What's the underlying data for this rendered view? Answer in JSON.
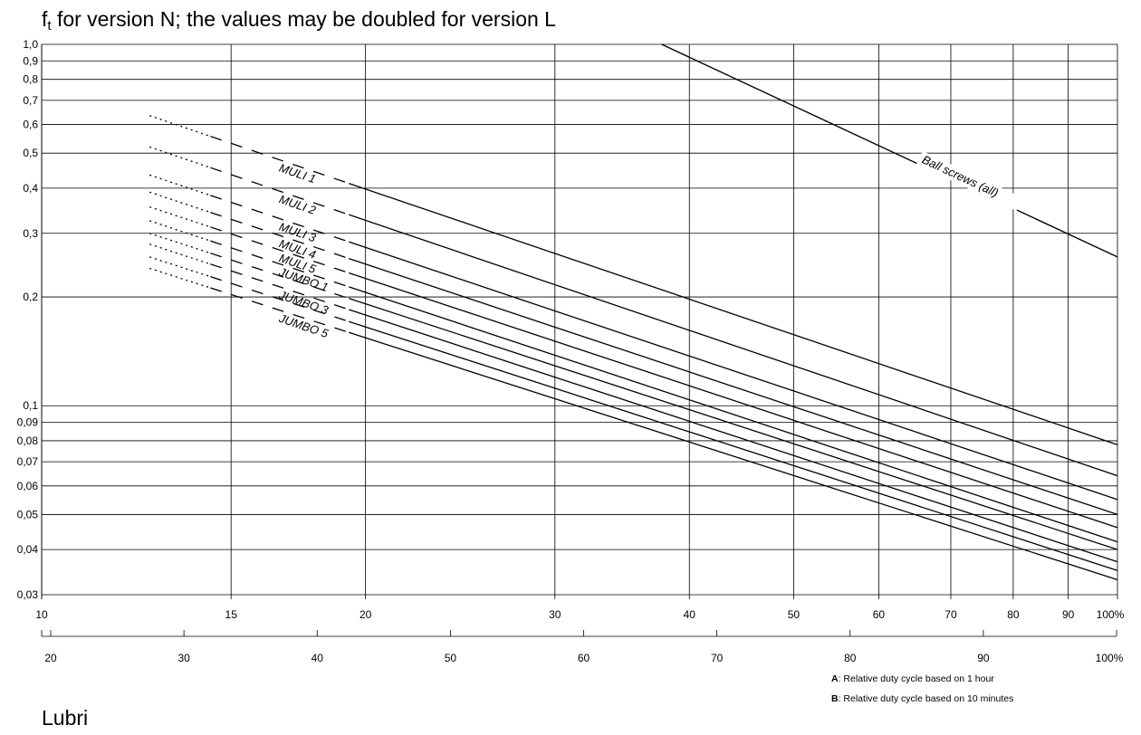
{
  "title": {
    "symbol": "f",
    "subscript": "t",
    "text": " for version N; the values may be doubled for version L"
  },
  "notes": [
    {
      "key": "A",
      "text": ": Relative duty cycle based on 1 hour"
    },
    {
      "key": "B",
      "text": ": Relative duty cycle based on 10 minutes"
    }
  ],
  "partial_text": "Lubri",
  "chart_data": {
    "type": "line",
    "title": "ft for version N; the values may be doubled for version L",
    "y_scale": "log",
    "ylim": [
      0.03,
      1.0
    ],
    "y_ticks": [
      {
        "value": 1.0,
        "label": "1,0"
      },
      {
        "value": 0.9,
        "label": "0,9"
      },
      {
        "value": 0.8,
        "label": "0,8"
      },
      {
        "value": 0.7,
        "label": "0,7"
      },
      {
        "value": 0.6,
        "label": "0,6"
      },
      {
        "value": 0.5,
        "label": "0,5"
      },
      {
        "value": 0.4,
        "label": "0,4"
      },
      {
        "value": 0.3,
        "label": "0,3"
      },
      {
        "value": 0.2,
        "label": "0,2"
      },
      {
        "value": 0.1,
        "label": "0,1"
      },
      {
        "value": 0.09,
        "label": "0,09"
      },
      {
        "value": 0.08,
        "label": "0,08"
      },
      {
        "value": 0.07,
        "label": "0,07"
      },
      {
        "value": 0.06,
        "label": "0,06"
      },
      {
        "value": 0.05,
        "label": "0,05"
      },
      {
        "value": 0.04,
        "label": "0,04"
      },
      {
        "value": 0.03,
        "label": "0,03"
      }
    ],
    "x_scale": "log",
    "xlim": [
      10,
      100
    ],
    "x_ticks": [
      {
        "value": 10,
        "label": "10"
      },
      {
        "value": 15,
        "label": "15"
      },
      {
        "value": 20,
        "label": "20"
      },
      {
        "value": 30,
        "label": "30"
      },
      {
        "value": 40,
        "label": "40"
      },
      {
        "value": 50,
        "label": "50"
      },
      {
        "value": 60,
        "label": "60"
      },
      {
        "value": 70,
        "label": "70"
      },
      {
        "value": 80,
        "label": "80"
      },
      {
        "value": 90,
        "label": "90"
      },
      {
        "value": 100,
        "label": "100%"
      }
    ],
    "x2_ticks": [
      {
        "value": 20,
        "label": "20"
      },
      {
        "value": 30,
        "label": "30"
      },
      {
        "value": 40,
        "label": "40"
      },
      {
        "value": 50,
        "label": "50"
      },
      {
        "value": 60,
        "label": "60"
      },
      {
        "value": 70,
        "label": "70"
      },
      {
        "value": 80,
        "label": "80"
      },
      {
        "value": 90,
        "label": "90"
      },
      {
        "value": 100,
        "label": "100%"
      }
    ],
    "grid": true,
    "series": [
      {
        "name": "Ball screws (all)",
        "label": "Ball screws (all)",
        "start_x": 37.7,
        "start_y": 1.0,
        "end_y": 0.258,
        "style": "solid"
      },
      {
        "name": "MULI 1",
        "label": "MULI 1",
        "start_x": 12.6,
        "start_y": 0.635,
        "end_y": 0.078,
        "style": "segmented"
      },
      {
        "name": "MULI 2",
        "label": "MULI 2",
        "start_x": 12.6,
        "start_y": 0.52,
        "end_y": 0.064,
        "style": "segmented"
      },
      {
        "name": "MULI 3",
        "label": "MULI 3",
        "start_x": 12.6,
        "start_y": 0.435,
        "end_y": 0.055,
        "style": "segmented"
      },
      {
        "name": "MULI 4",
        "label": "MULI 4",
        "start_x": 12.6,
        "start_y": 0.39,
        "end_y": 0.05,
        "style": "segmented"
      },
      {
        "name": "MULI 5",
        "label": "MULI 5",
        "start_x": 12.6,
        "start_y": 0.355,
        "end_y": 0.046,
        "style": "segmented"
      },
      {
        "name": "JUMBO 1",
        "label": "JUMBO 1",
        "start_x": 12.6,
        "start_y": 0.325,
        "end_y": 0.042,
        "style": "segmented"
      },
      {
        "name": "",
        "label": "",
        "start_x": 12.6,
        "start_y": 0.3,
        "end_y": 0.04,
        "style": "segmented"
      },
      {
        "name": "JUMBO 3",
        "label": "JUMBO 3",
        "start_x": 12.6,
        "start_y": 0.28,
        "end_y": 0.037,
        "style": "segmented"
      },
      {
        "name": "",
        "label": "",
        "start_x": 12.6,
        "start_y": 0.258,
        "end_y": 0.035,
        "style": "segmented"
      },
      {
        "name": "JUMBO 5",
        "label": "JUMBO 5",
        "start_x": 12.6,
        "start_y": 0.24,
        "end_y": 0.033,
        "style": "segmented"
      }
    ]
  }
}
